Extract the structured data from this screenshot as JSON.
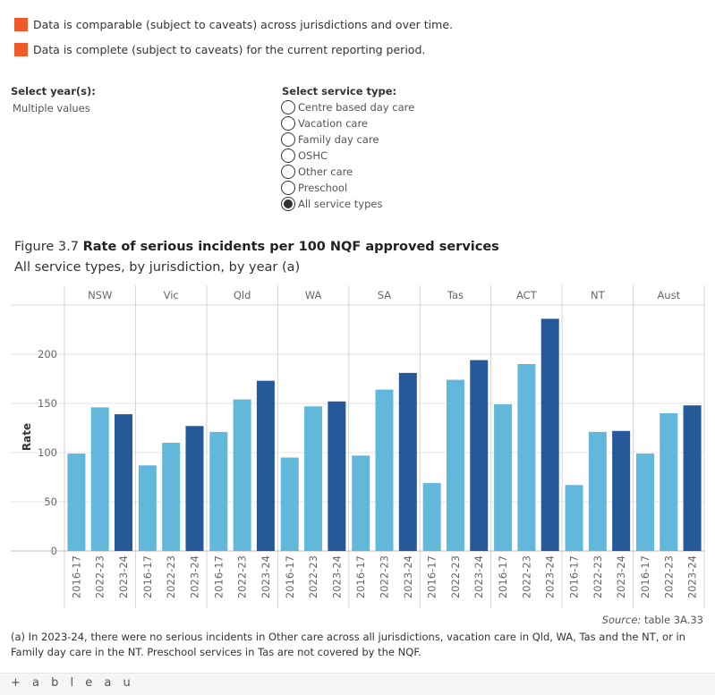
{
  "legend": [
    {
      "text": "Data is comparable (subject to caveats) across jurisdictions and over time.",
      "color": "#f05a28"
    },
    {
      "text": "Data is complete (subject to caveats) for the current reporting period.",
      "color": "#f05a28"
    }
  ],
  "filters": {
    "year": {
      "title": "Select year(s):",
      "value": "Multiple values"
    },
    "service": {
      "title": "Select service type:",
      "options": [
        "Centre based day care",
        "Vacation care",
        "Family day care",
        "OSHC",
        "Other care",
        "Preschool",
        "All service types"
      ],
      "selected": "All service types"
    }
  },
  "figure": {
    "number": "Figure 3.7",
    "title": "Rate of serious incidents per 100 NQF approved services",
    "subtitle": "All service types, by jurisdiction, by year (a)"
  },
  "chart_data": {
    "type": "bar",
    "ylabel": "Rate",
    "ylim": [
      0,
      250
    ],
    "yticks": [
      0,
      50,
      100,
      150,
      200
    ],
    "grid": true,
    "panels": [
      "NSW",
      "Vic",
      "Qld",
      "WA",
      "SA",
      "Tas",
      "ACT",
      "NT",
      "Aust"
    ],
    "categories": [
      "2016-17",
      "2022-23",
      "2023-24"
    ],
    "series_colors": {
      "2016-17": "#62b8da",
      "2022-23": "#62b8da",
      "2023-24": "#26599a"
    },
    "values": {
      "NSW": [
        99,
        146,
        139
      ],
      "Vic": [
        87,
        110,
        127
      ],
      "Qld": [
        121,
        154,
        173
      ],
      "WA": [
        95,
        147,
        152
      ],
      "SA": [
        97,
        164,
        181
      ],
      "Tas": [
        69,
        174,
        194
      ],
      "ACT": [
        149,
        190,
        236
      ],
      "NT": [
        67,
        121,
        122
      ],
      "Aust": [
        99,
        140,
        148
      ]
    }
  },
  "source": {
    "label": "Source:",
    "text": "table 3A.33"
  },
  "footnote": "(a) In 2023-24, there were no serious incidents in Other care across all jurisdictions, vacation care in Qld, WA, Tas and the NT, or in Family day care in the NT. Preschool services in Tas are not covered by the NQF.",
  "branding": {
    "logo_text": "+ a b l e a u"
  }
}
